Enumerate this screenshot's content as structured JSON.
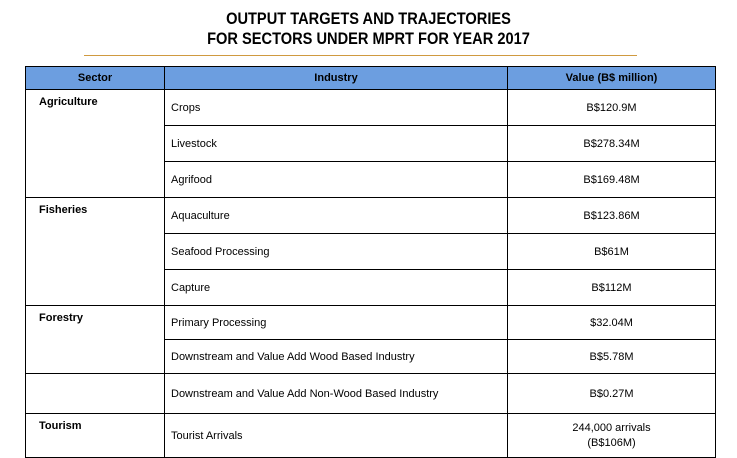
{
  "title": {
    "line1": "OUTPUT TARGETS AND TRAJECTORIES",
    "line2": "FOR SECTORS UNDER MPRT FOR YEAR 2017"
  },
  "table": {
    "headers": {
      "sector": "Sector",
      "industry": "Industry",
      "value": "Value (B$ million)"
    },
    "rows": [
      {
        "sector": "Agriculture",
        "industry": "Crops",
        "value": "B$120.9M"
      },
      {
        "sector": "",
        "industry": "Livestock",
        "value": "B$278.34M"
      },
      {
        "sector": "",
        "industry": "Agrifood",
        "value": "B$169.48M"
      },
      {
        "sector": "Fisheries",
        "industry": "Aquaculture",
        "value": "B$123.86M"
      },
      {
        "sector": "",
        "industry": "Seafood Processing",
        "value": "B$61M"
      },
      {
        "sector": "",
        "industry": "Capture",
        "value": "B$112M"
      },
      {
        "sector": "Forestry",
        "industry": "Primary Processing",
        "value": "$32.04M"
      },
      {
        "sector": "",
        "industry": "Downstream and Value Add Wood Based Industry",
        "value": "B$5.78M"
      },
      {
        "sector": "",
        "industry": "Downstream and Value Add Non-Wood Based Industry",
        "value": "B$0.27M"
      },
      {
        "sector": "Tourism",
        "industry": "Tourist Arrivals",
        "value": "244,000 arrivals",
        "value_line2": "(B$106M)"
      }
    ]
  }
}
